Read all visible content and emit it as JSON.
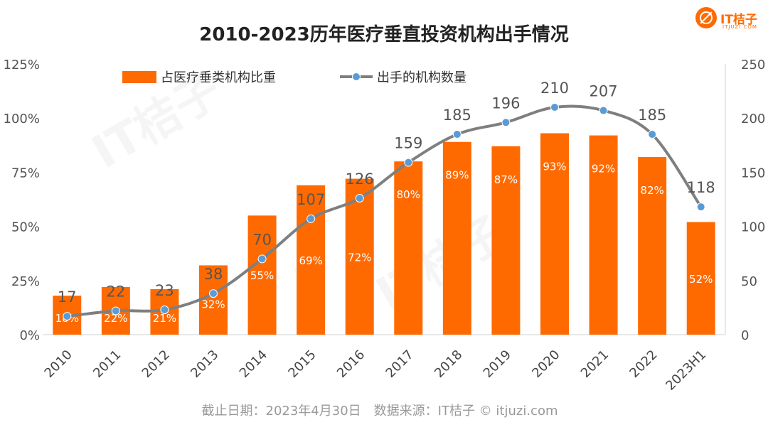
{
  "brand": {
    "logo_text": "IT桔子",
    "logo_domain": "ITJUZI.COM",
    "accent_color": "#ff6a00"
  },
  "chart_data": {
    "type": "bar",
    "title": "2010-2023历年医疗垂直投资机构出手情况",
    "categories": [
      "2010",
      "2011",
      "2012",
      "2013",
      "2014",
      "2015",
      "2016",
      "2017",
      "2018",
      "2019",
      "2020",
      "2021",
      "2022",
      "2023H1"
    ],
    "series": [
      {
        "name": "占医疗垂类机构比重",
        "type": "bar",
        "axis": "left",
        "color": "#ff6a00",
        "values": [
          18,
          22,
          21,
          32,
          55,
          69,
          72,
          80,
          89,
          87,
          93,
          92,
          82,
          52
        ],
        "labels": [
          "18%",
          "22%",
          "21%",
          "32%",
          "55%",
          "69%",
          "72%",
          "80%",
          "89%",
          "87%",
          "93%",
          "92%",
          "82%",
          "52%"
        ]
      },
      {
        "name": "出手的机构数量",
        "type": "line",
        "axis": "right",
        "color": "#7f7f7f",
        "marker_color": "#5b9bd5",
        "values": [
          17,
          22,
          23,
          38,
          70,
          107,
          126,
          159,
          185,
          196,
          210,
          207,
          185,
          118
        ],
        "labels": [
          "17",
          "22",
          "23",
          "38",
          "70",
          "107",
          "126",
          "159",
          "185",
          "196",
          "210",
          "207",
          "185",
          "118"
        ]
      }
    ],
    "y_left": {
      "min": 0,
      "max": 125,
      "ticks": [
        "0%",
        "25%",
        "50%",
        "75%",
        "100%",
        "125%"
      ]
    },
    "y_right": {
      "min": 0,
      "max": 250,
      "ticks": [
        "0",
        "50",
        "100",
        "150",
        "200",
        "250"
      ]
    },
    "legend_position": "top",
    "grid": false
  },
  "footer": {
    "source": "截止日期：2023年4月30日　数据来源：IT桔子 © itjuzi.com"
  }
}
